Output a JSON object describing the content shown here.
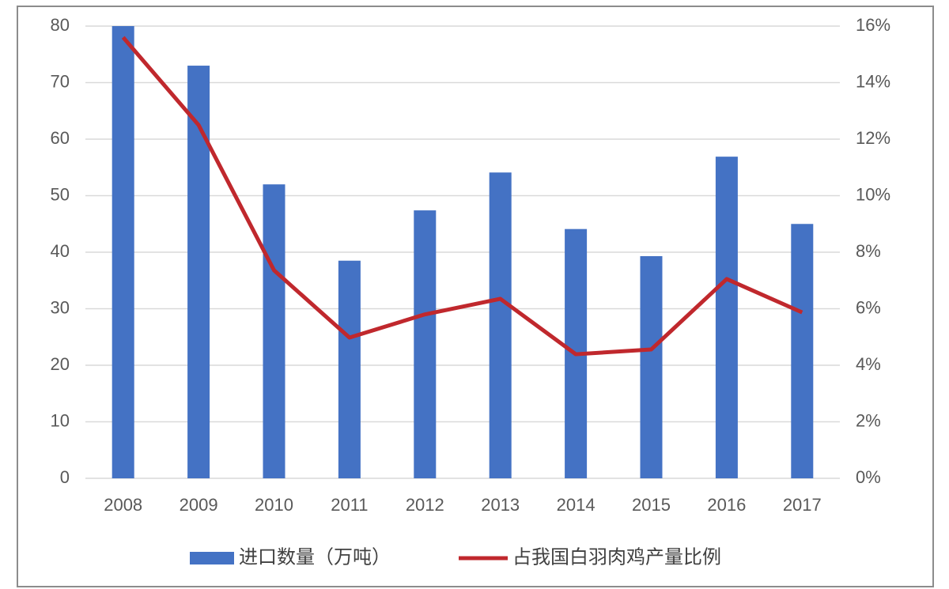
{
  "chart_data": {
    "type": "bar-line",
    "categories": [
      "2008",
      "2009",
      "2010",
      "2011",
      "2012",
      "2013",
      "2014",
      "2015",
      "2016",
      "2017"
    ],
    "series": [
      {
        "name": "进口数量（万吨）",
        "type": "bar",
        "color": "#4472c4",
        "values": [
          80,
          73,
          52,
          38.5,
          47.4,
          54.1,
          44.1,
          39.3,
          56.9,
          45
        ]
      },
      {
        "name": "占我国白羽肉鸡产量比例",
        "type": "line",
        "axis": "y2",
        "color": "#c0282d",
        "values": [
          15.6,
          12.5,
          7.36,
          4.98,
          5.8,
          6.35,
          4.39,
          4.56,
          7.05,
          5.87
        ]
      }
    ],
    "ylim": [
      0,
      80
    ],
    "yticks": [
      0,
      10,
      20,
      30,
      40,
      50,
      60,
      70,
      80
    ],
    "y2lim": [
      0,
      16
    ],
    "y2ticks": [
      {
        "value": 0,
        "label": "0%"
      },
      {
        "value": 2,
        "label": "2%"
      },
      {
        "value": 4,
        "label": "4%"
      },
      {
        "value": 6,
        "label": "6%"
      },
      {
        "value": 8,
        "label": "8%"
      },
      {
        "value": 10,
        "label": "10%"
      },
      {
        "value": 12,
        "label": "12%"
      },
      {
        "value": 14,
        "label": "14%"
      },
      {
        "value": 16,
        "label": "16%"
      }
    ],
    "grid": true,
    "legend": "bottom"
  }
}
